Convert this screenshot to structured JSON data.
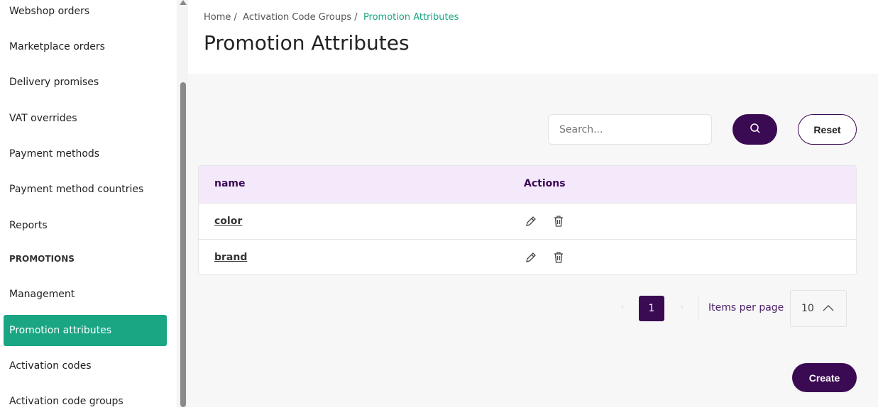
{
  "sidebar": {
    "items": [
      "Webshop orders",
      "Marketplace orders",
      "Delivery promises",
      "VAT overrides",
      "Payment methods",
      "Payment method countries",
      "Reports"
    ],
    "section": "PROMOTIONS",
    "promo_items": [
      "Management",
      "Promotion attributes",
      "Activation codes",
      "Activation code groups"
    ],
    "active": "Promotion attributes"
  },
  "breadcrumb": {
    "home": "Home /",
    "group": "Activation Code Groups /",
    "current": "Promotion Attributes"
  },
  "page_title": "Promotion Attributes",
  "search": {
    "placeholder": "Search...",
    "value": "",
    "reset_label": "Reset"
  },
  "table": {
    "headers": [
      "name",
      "Actions"
    ],
    "rows": [
      {
        "name": "color"
      },
      {
        "name": "brand"
      }
    ]
  },
  "pagination": {
    "current_page": "1",
    "items_per_page_label": "Items per page",
    "items_per_page": "10"
  },
  "create_label": "Create",
  "colors": {
    "accent": "#1aa683",
    "brand": "#3a0a52",
    "header_bg": "#f4e8fb"
  }
}
